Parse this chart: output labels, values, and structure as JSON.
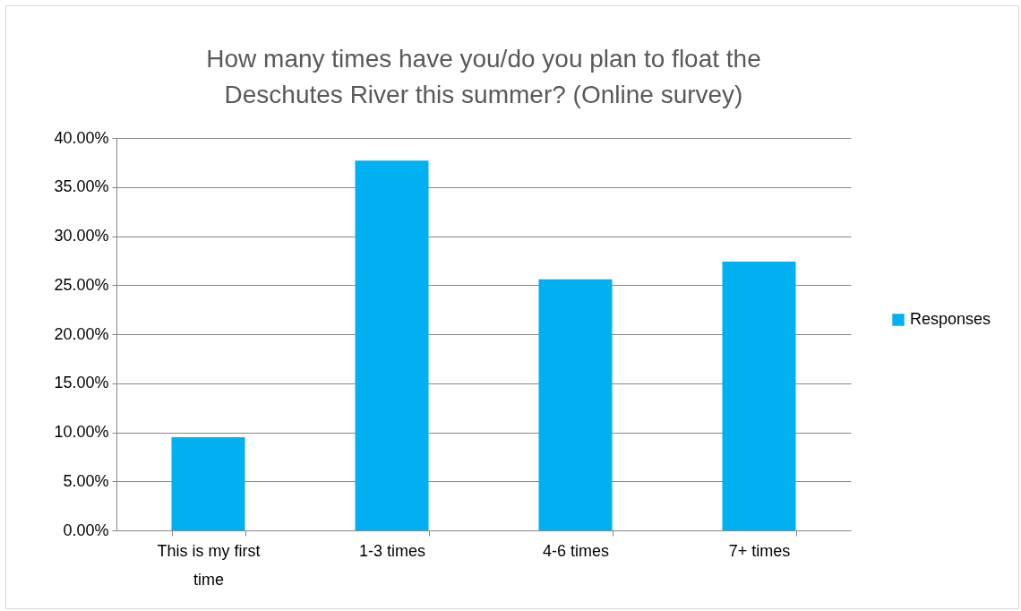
{
  "chart_data": {
    "type": "bar",
    "title": "How many times have you/do you plan to float the Deschutes River this summer? (Online survey)",
    "categories": [
      "This is my first time",
      "1-3 times",
      "4-6 times",
      "7+ times"
    ],
    "series": [
      {
        "name": "Responses",
        "color": "#00b0f0",
        "values": [
          9.5,
          37.7,
          25.6,
          27.4
        ]
      }
    ],
    "ylim": [
      0,
      40
    ],
    "yticks": [
      {
        "value": 0,
        "label": "0.00%"
      },
      {
        "value": 5,
        "label": "5.00%"
      },
      {
        "value": 10,
        "label": "10.00%"
      },
      {
        "value": 15,
        "label": "15.00%"
      },
      {
        "value": 20,
        "label": "20.00%"
      },
      {
        "value": 25,
        "label": "25.00%"
      },
      {
        "value": 30,
        "label": "30.00%"
      },
      {
        "value": 35,
        "label": "35.00%"
      },
      {
        "value": 40,
        "label": "40.00%"
      }
    ],
    "grid": "y",
    "legend": "right"
  }
}
